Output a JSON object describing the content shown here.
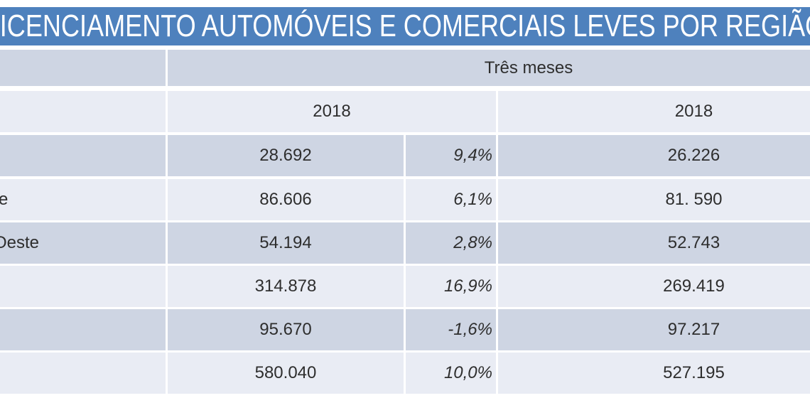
{
  "banner": {
    "title": "LICENCIAMENTO AUTOMÓVEIS E COMERCIAIS LEVES POR REGIÃO"
  },
  "table": {
    "group_header": "Três meses",
    "year_headers": [
      "2018",
      "2018"
    ],
    "rows": [
      {
        "region": "",
        "v1": "28.692",
        "pct": "9,4%",
        "v2": "26.226"
      },
      {
        "region": "e",
        "v1": "86.606",
        "pct": "6,1%",
        "v2": "81. 590"
      },
      {
        "region": "Oeste",
        "v1": "54.194",
        "pct": "2,8%",
        "v2": "52.743"
      },
      {
        "region": "",
        "v1": "314.878",
        "pct": "16,9%",
        "v2": "269.419"
      },
      {
        "region": "",
        "v1": "95.670",
        "pct": "-1,6%",
        "v2": "97.217"
      },
      {
        "region": "",
        "v1": "580.040",
        "pct": "10,0%",
        "v2": "527.195"
      }
    ]
  },
  "colors": {
    "banner_blue": "#4E81BD",
    "band_dark": "#CED5E3",
    "band_light": "#E9ECF4",
    "grid_white": "#FFFFFF",
    "text": "#2E2E2E",
    "title_text": "#FFFFFF"
  },
  "chart_data": {
    "type": "table",
    "title": "LICENCIAMENTO AUTOMÓVEIS E COMERCIAIS LEVES POR REGIÃO",
    "group_header": "Três meses",
    "column_headers": [
      "2018",
      "%",
      "2018"
    ],
    "visible_row_labels": [
      "",
      "e",
      "Oeste",
      "",
      "",
      ""
    ],
    "rows": [
      [
        "28.692",
        "9,4%",
        "26.226"
      ],
      [
        "86.606",
        "6,1%",
        "81. 590"
      ],
      [
        "54.194",
        "2,8%",
        "52.743"
      ],
      [
        "314.878",
        "16,9%",
        "269.419"
      ],
      [
        "95.670",
        "-1,6%",
        "97.217"
      ],
      [
        "580.040",
        "10,0%",
        "527.195"
      ]
    ]
  }
}
